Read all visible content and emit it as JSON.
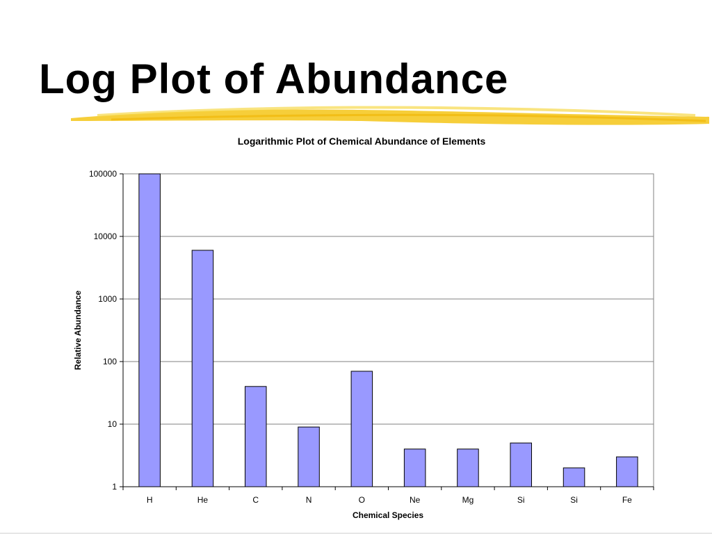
{
  "slide": {
    "title": "Log Plot of Abundance"
  },
  "colors": {
    "bar_fill": "#9999ff",
    "bar_stroke": "#000000",
    "underline": "#f5c518"
  },
  "chart_data": {
    "type": "bar",
    "title": "Logarithmic Plot of Chemical Abundance of Elements",
    "xlabel": "Chemical Species",
    "ylabel": "Relative Abundance",
    "yscale": "log",
    "ylim": [
      1,
      100000
    ],
    "yticks": [
      "1",
      "10",
      "100",
      "1000",
      "10000",
      "100000"
    ],
    "categories": [
      "H",
      "He",
      "C",
      "N",
      "O",
      "Ne",
      "Mg",
      "Si",
      "Si",
      "Fe"
    ],
    "values": [
      100000,
      6000,
      40,
      9,
      70,
      4,
      4,
      5,
      2,
      3
    ],
    "grid": true,
    "legend": "none"
  }
}
